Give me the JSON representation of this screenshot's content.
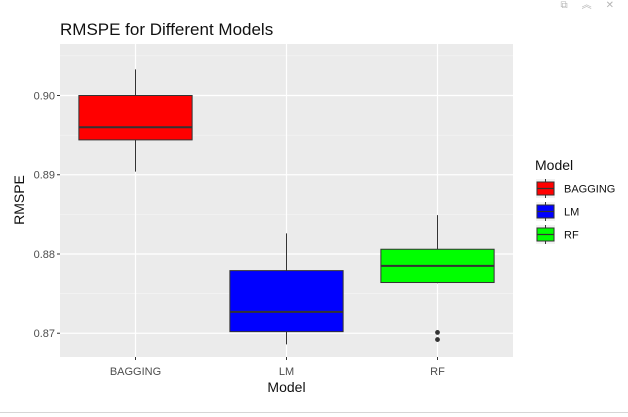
{
  "window": {
    "controls": [
      {
        "name": "copy-icon",
        "glyph": "⧉"
      },
      {
        "name": "collapse-icon",
        "glyph": "︽"
      },
      {
        "name": "close-icon",
        "glyph": "✕"
      }
    ]
  },
  "chart_data": {
    "type": "boxplot",
    "title": "RMSPE for Different Models",
    "xlabel": "Model",
    "ylabel": "RMSPE",
    "ylim": [
      0.867,
      0.9065
    ],
    "yticks": [
      0.87,
      0.88,
      0.89,
      0.9
    ],
    "ytick_labels": [
      "0.87",
      "0.88",
      "0.89",
      "0.90"
    ],
    "categories": [
      "BAGGING",
      "LM",
      "RF"
    ],
    "grid": true,
    "legend": {
      "title": "Model",
      "position": "right",
      "entries": [
        "BAGGING",
        "LM",
        "RF"
      ]
    },
    "series": [
      {
        "name": "BAGGING",
        "color": "#ff0000",
        "whisker_low": 0.8904,
        "q1": 0.8944,
        "median": 0.896,
        "q3": 0.9,
        "whisker_high": 0.9033,
        "outliers": []
      },
      {
        "name": "LM",
        "color": "#0000ff",
        "whisker_low": 0.8686,
        "q1": 0.8702,
        "median": 0.8727,
        "q3": 0.8779,
        "whisker_high": 0.8826,
        "outliers": []
      },
      {
        "name": "RF",
        "color": "#00ff00",
        "whisker_low": 0.8763,
        "q1": 0.8764,
        "median": 0.8785,
        "q3": 0.8806,
        "whisker_high": 0.8849,
        "outliers": [
          0.8701,
          0.8692
        ]
      }
    ]
  }
}
